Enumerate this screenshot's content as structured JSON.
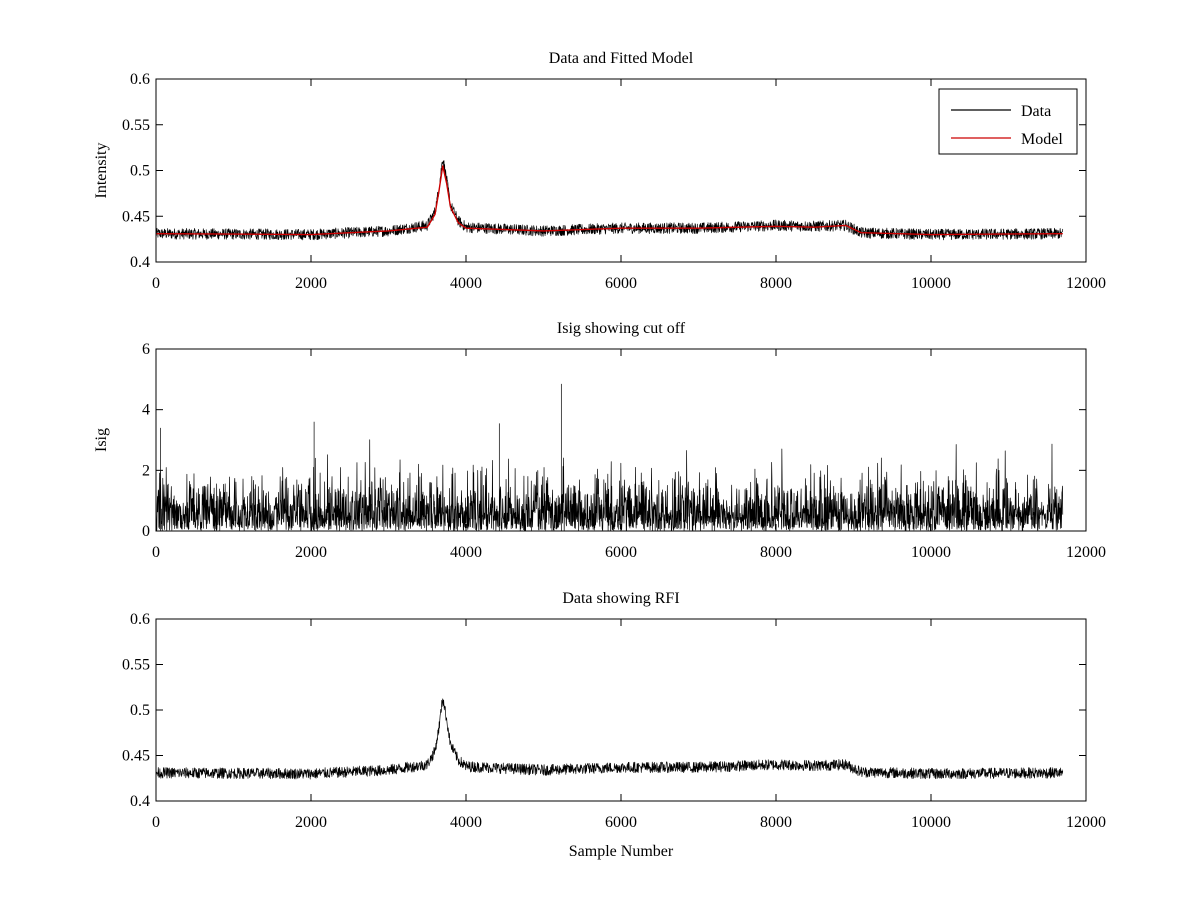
{
  "figure": {
    "background": "#ffffff"
  },
  "chart_data": [
    {
      "id": "top",
      "type": "line",
      "title": "Data and Fitted Model",
      "xlabel": "",
      "ylabel": "Intensity",
      "xlim": [
        0,
        12000
      ],
      "ylim": [
        0.4,
        0.6
      ],
      "xticks": [
        0,
        2000,
        4000,
        6000,
        8000,
        10000,
        12000
      ],
      "xtick_labels": [
        "0",
        "2000",
        "4000",
        "6000",
        "8000",
        "10000",
        "12000"
      ],
      "yticks": [
        0.4,
        0.45,
        0.5,
        0.55,
        0.6
      ],
      "ytick_labels": [
        "0.4",
        "0.45",
        "0.5",
        "0.55",
        "0.6"
      ],
      "legend": {
        "placement": "top-right",
        "entries": [
          {
            "label": "Data",
            "color": "#000000"
          },
          {
            "label": "Model",
            "color": "#cc0000"
          }
        ]
      },
      "series": [
        {
          "name": "Data",
          "color": "#000000",
          "kind": "noisy",
          "n_samples": 11700,
          "noise_amplitude": 0.006,
          "x": [
            0,
            2000,
            3000,
            3500,
            3600,
            3650,
            3700,
            3750,
            3800,
            3900,
            4000,
            5000,
            6000,
            7000,
            8000,
            8500,
            8900,
            9100,
            10000,
            11700
          ],
          "y": [
            0.431,
            0.43,
            0.434,
            0.44,
            0.455,
            0.48,
            0.514,
            0.49,
            0.462,
            0.445,
            0.438,
            0.434,
            0.437,
            0.437,
            0.44,
            0.439,
            0.44,
            0.432,
            0.43,
            0.431
          ]
        },
        {
          "name": "Model",
          "color": "#cc0000",
          "kind": "smooth",
          "x": [
            0,
            2000,
            3000,
            3500,
            3600,
            3650,
            3700,
            3750,
            3800,
            3900,
            4000,
            5000,
            6000,
            7000,
            8000,
            8500,
            8900,
            9100,
            10000,
            11700
          ],
          "y": [
            0.431,
            0.43,
            0.434,
            0.438,
            0.452,
            0.477,
            0.505,
            0.486,
            0.46,
            0.443,
            0.437,
            0.434,
            0.437,
            0.437,
            0.439,
            0.438,
            0.44,
            0.432,
            0.43,
            0.431
          ]
        }
      ]
    },
    {
      "id": "middle",
      "type": "line",
      "title": "Isig showing cut off",
      "xlabel": "",
      "ylabel": "Isig",
      "xlim": [
        0,
        12000
      ],
      "ylim": [
        0,
        6
      ],
      "xticks": [
        0,
        2000,
        4000,
        6000,
        8000,
        10000,
        12000
      ],
      "xtick_labels": [
        "0",
        "2000",
        "4000",
        "6000",
        "8000",
        "10000",
        "12000"
      ],
      "yticks": [
        0,
        2,
        4,
        6
      ],
      "ytick_labels": [
        "0",
        "2",
        "4",
        "6"
      ],
      "series": [
        {
          "name": "Isig",
          "color": "#000000",
          "kind": "halfnormal",
          "n_samples": 11700,
          "scale": 0.8,
          "max_value": 3.6,
          "spikes": [
            {
              "x": 5230,
              "y": 4.85
            },
            {
              "x": 2040,
              "y": 3.6
            },
            {
              "x": 4430,
              "y": 3.55
            },
            {
              "x": 60,
              "y": 3.4
            }
          ]
        }
      ]
    },
    {
      "id": "bottom",
      "type": "line",
      "title": "Data showing RFI",
      "xlabel": "Sample Number",
      "ylabel": "",
      "xlim": [
        0,
        12000
      ],
      "ylim": [
        0.4,
        0.6
      ],
      "xticks": [
        0,
        2000,
        4000,
        6000,
        8000,
        10000,
        12000
      ],
      "xtick_labels": [
        "0",
        "2000",
        "4000",
        "6000",
        "8000",
        "10000",
        "12000"
      ],
      "yticks": [
        0.4,
        0.45,
        0.5,
        0.55,
        0.6
      ],
      "ytick_labels": [
        "0.4",
        "0.45",
        "0.5",
        "0.55",
        "0.6"
      ],
      "series": [
        {
          "name": "Data",
          "color": "#000000",
          "kind": "noisy",
          "n_samples": 11700,
          "noise_amplitude": 0.006,
          "x": [
            0,
            2000,
            3000,
            3500,
            3600,
            3650,
            3700,
            3750,
            3800,
            3900,
            4000,
            5000,
            6000,
            7000,
            8000,
            8500,
            8900,
            9100,
            10000,
            11700
          ],
          "y": [
            0.431,
            0.43,
            0.434,
            0.44,
            0.455,
            0.48,
            0.514,
            0.49,
            0.462,
            0.445,
            0.438,
            0.434,
            0.437,
            0.437,
            0.44,
            0.439,
            0.44,
            0.432,
            0.43,
            0.431
          ]
        }
      ]
    }
  ]
}
